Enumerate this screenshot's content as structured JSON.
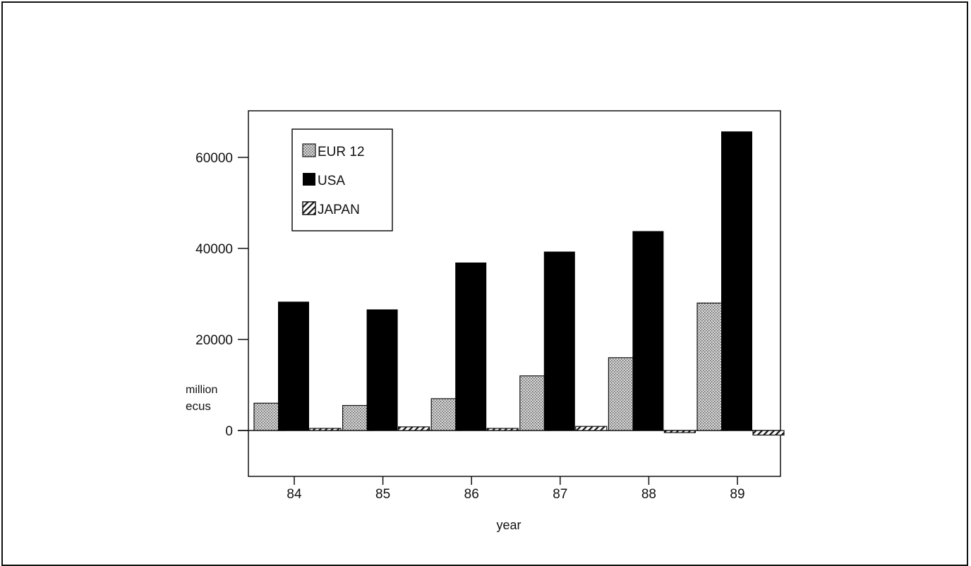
{
  "chart_data": {
    "type": "bar",
    "categories": [
      "84",
      "85",
      "86",
      "87",
      "88",
      "89"
    ],
    "series": [
      {
        "name": "EUR 12",
        "values": [
          6000,
          5500,
          7000,
          12000,
          16000,
          28000
        ]
      },
      {
        "name": "USA",
        "values": [
          28300,
          26600,
          36900,
          39300,
          43800,
          65700
        ]
      },
      {
        "name": "JAPAN",
        "values": [
          0,
          800,
          200,
          900,
          -300,
          -1000
        ]
      }
    ],
    "yticks": [
      0,
      20000,
      40000,
      60000
    ],
    "ylim": [
      -10000,
      70000
    ],
    "ylabel_line1": "million",
    "ylabel_line2": "ecus",
    "xlabel": "year",
    "legend_position": "top-left",
    "colors": {
      "EUR 12": "#bdbdbd",
      "USA": "#000000",
      "JAPAN": "#ffffff"
    }
  }
}
